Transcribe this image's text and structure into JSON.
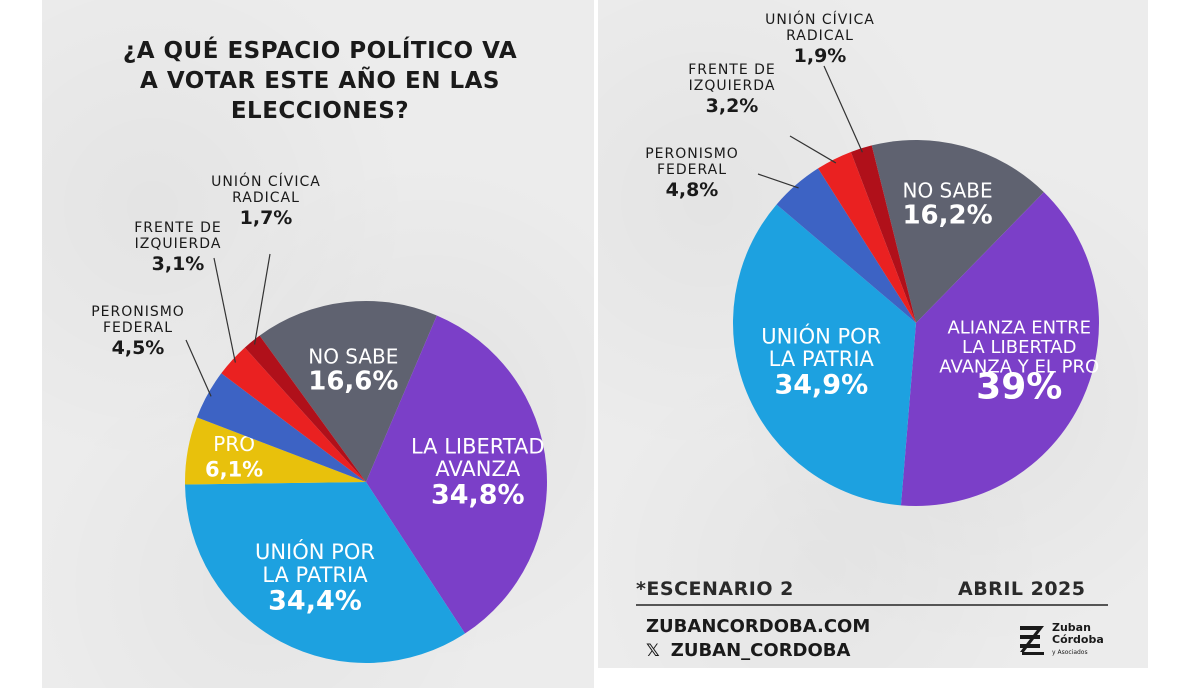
{
  "title": "¿A QUÉ ESPACIO POLÍTICO VA A VOTAR ESTE AÑO EN LAS ELECCIONES?",
  "footer": {
    "scenario": "*ESCENARIO 2",
    "date": "ABRIL 2025",
    "website": "ZUBANCORDOBA.COM",
    "social_icon": "x-logo-icon",
    "social": "ZUBAN_CORDOBA",
    "brand_line1": "Zuban",
    "brand_line2": "Córdoba",
    "brand_line3": "y Asociados"
  },
  "chart_data": [
    {
      "type": "pie",
      "title": "¿A QUÉ ESPACIO POLÍTICO VA A VOTAR ESTE AÑO EN LAS ELECCIONES?",
      "series": [
        {
          "label": "NO SABE",
          "value": 16.6,
          "value_label": "16,6%",
          "color": "#5f6270"
        },
        {
          "label": "LA LIBERTAD AVANZA",
          "value": 34.8,
          "value_label": "34,8%",
          "color": "#7b3fc8"
        },
        {
          "label": "UNIÓN POR LA PATRIA",
          "value": 34.4,
          "value_label": "34,4%",
          "color": "#1da1e0"
        },
        {
          "label": "PRO",
          "value": 6.1,
          "value_label": "6,1%",
          "color": "#e8c10c"
        },
        {
          "label": "PERONISMO FEDERAL",
          "value": 4.5,
          "value_label": "4,5%",
          "color": "#3d63c4"
        },
        {
          "label": "FRENTE DE IZQUIERDA",
          "value": 3.1,
          "value_label": "3,1%",
          "color": "#ea2121"
        },
        {
          "label": "UNIÓN CÍVICA RADICAL",
          "value": 1.7,
          "value_label": "1,7%",
          "color": "#b0101a"
        }
      ]
    },
    {
      "type": "pie",
      "series": [
        {
          "label": "NO SABE",
          "value": 16.2,
          "value_label": "16,2%",
          "color": "#5f6270"
        },
        {
          "label": "ALIANZA ENTRE LA LIBERTAD AVANZA Y EL PRO",
          "value": 39,
          "value_label": "39%",
          "color": "#7b3fc8"
        },
        {
          "label": "UNIÓN POR LA PATRIA",
          "value": 34.9,
          "value_label": "34,9%",
          "color": "#1da1e0"
        },
        {
          "label": "PERONISMO FEDERAL",
          "value": 4.8,
          "value_label": "4,8%",
          "color": "#3d63c4"
        },
        {
          "label": "FRENTE DE IZQUIERDA",
          "value": 3.2,
          "value_label": "3,2%",
          "color": "#ea2121"
        },
        {
          "label": "UNIÓN CÍVICA RADICAL",
          "value": 1.9,
          "value_label": "1,9%",
          "color": "#b0101a"
        }
      ]
    }
  ]
}
